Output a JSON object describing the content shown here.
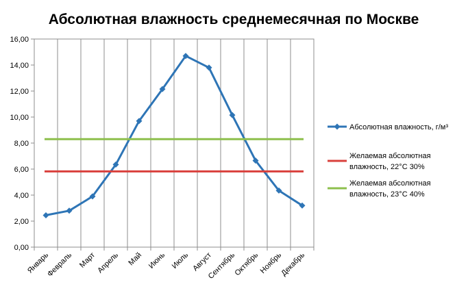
{
  "chart_data": {
    "type": "line",
    "title": "Абсолютная влажность среднемесячная по Москве",
    "categories": [
      "Январь",
      "Февраль",
      "Март",
      "Апрель",
      "Май",
      "Июнь",
      "Июль",
      "Август",
      "Сентябрь",
      "Октябрь",
      "Ноябрь",
      "Декабрь"
    ],
    "y_ticks": [
      "0,00",
      "2,00",
      "4,00",
      "6,00",
      "8,00",
      "10,00",
      "12,00",
      "14,00",
      "16,00"
    ],
    "ylim": [
      0,
      16
    ],
    "grid": "vertical",
    "legend_position": "right",
    "series": [
      {
        "name": "Абсолютная влажность, г/м³",
        "legend_lines": [
          "Абсолютная влажность, г/м³"
        ],
        "color": "#2e75b6",
        "marker": "diamond",
        "values": [
          2.45,
          2.8,
          3.9,
          6.35,
          9.7,
          12.15,
          14.7,
          13.8,
          10.15,
          6.65,
          4.35,
          3.2
        ]
      },
      {
        "name": "Желаемая абсолютная влажность, 22°С 30%",
        "legend_lines": [
          "Желаемая абсолютная",
          "влажность, 22°С 30%"
        ],
        "color": "#d9403c",
        "marker": "none",
        "values": [
          5.82,
          5.82,
          5.82,
          5.82,
          5.82,
          5.82,
          5.82,
          5.82,
          5.82,
          5.82,
          5.82,
          5.82
        ]
      },
      {
        "name": "Желаемая абсолютная влажность, 23°С 40%",
        "legend_lines": [
          "Желаемая абсолютная",
          "влажность, 23°С 40%"
        ],
        "color": "#8dbf4c",
        "marker": "none",
        "values": [
          8.3,
          8.3,
          8.3,
          8.3,
          8.3,
          8.3,
          8.3,
          8.3,
          8.3,
          8.3,
          8.3,
          8.3
        ]
      }
    ]
  }
}
